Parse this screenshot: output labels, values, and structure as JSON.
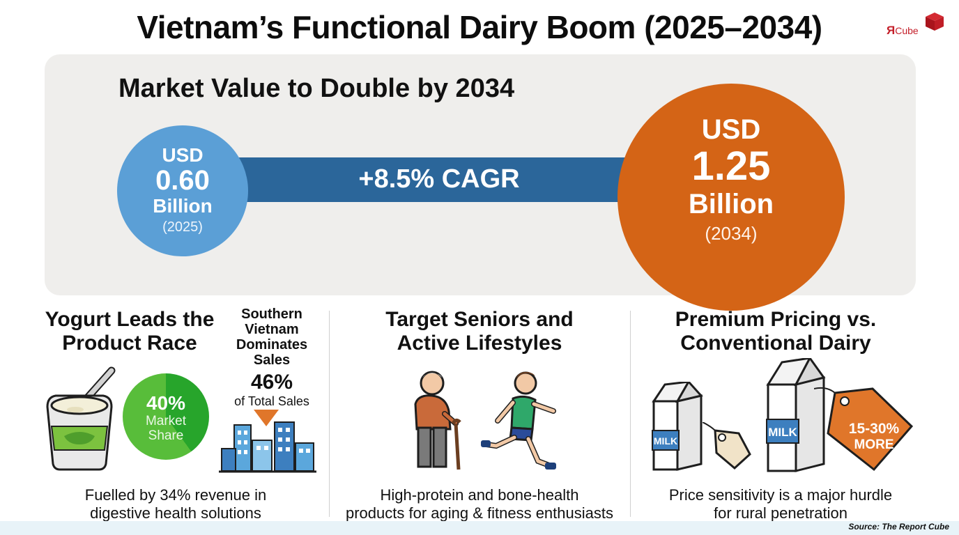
{
  "header": {
    "title": "Vietnam’s Functional Dairy Boom (2025–2034)"
  },
  "logo": {
    "mark": "Я",
    "text": "Cube",
    "icon": "red-cube-icon"
  },
  "hero": {
    "heading": "Market Value to Double by 2034",
    "cagr_label": "+8.5% CAGR",
    "start": {
      "currency": "USD",
      "value": "0.60",
      "unit": "Billion",
      "year": "(2025)"
    },
    "end": {
      "currency": "USD",
      "value": "1.25",
      "unit": "Billion",
      "year": "(2034)"
    }
  },
  "sections": {
    "yogurt": {
      "title_line1": "Yogurt Leads the",
      "title_line2": "Product Race",
      "share_pct": "40%",
      "share_label1": "Market",
      "share_label2": "Share",
      "share_value": 0.4,
      "caption_line1": "Fuelled by 34% revenue in",
      "caption_line2": "digestive health solutions",
      "icon": "yogurt-cup-icon"
    },
    "south": {
      "title_line1": "Southern",
      "title_line2": "Vietnam",
      "title_line3": "Dominates",
      "title_line4": "Sales",
      "pct": "46%",
      "pct_label": "of Total Sales",
      "icon": "city-skyline-icon"
    },
    "seniors": {
      "title_line1": "Target Seniors and",
      "title_line2": "Active Lifestyles",
      "caption_line1": "High-protein and bone-health",
      "caption_line2": "products for aging & fitness enthusiasts",
      "icons": [
        "senior-with-cane-icon",
        "runner-icon"
      ]
    },
    "pricing": {
      "title_line1": "Premium Pricing vs.",
      "title_line2": "Conventional Dairy",
      "milk_small": "MILK",
      "milk_large": "MILK",
      "tag_line1": "15-30%",
      "tag_line2": "MORE",
      "caption_line1": "Price sensitivity is a major hurdle",
      "caption_line2": "for rural penetration"
    }
  },
  "footer": {
    "source": "Source: The Report Cube"
  },
  "colors": {
    "start_circle": "#5b9fd6",
    "end_circle": "#d46416",
    "cagr_bar": "#2b669a",
    "share_green": "#27a52b",
    "price_tag": "#e0762a"
  }
}
